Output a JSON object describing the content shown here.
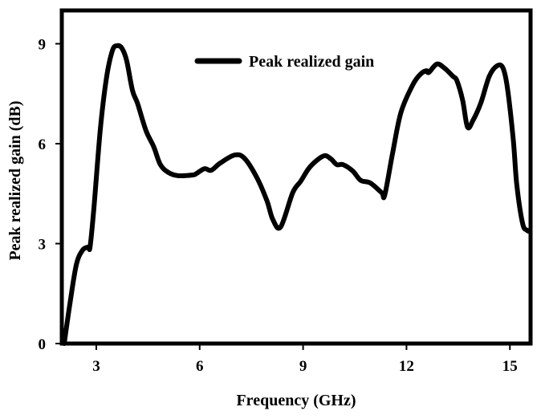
{
  "chart_data": {
    "type": "line",
    "title": "",
    "xlabel": "Frequency  (GHz)",
    "ylabel": "Peak realized gain  (dB)",
    "xlim": [
      2,
      15.6
    ],
    "ylim": [
      0,
      10
    ],
    "xticks": [
      3,
      6,
      9,
      12,
      15
    ],
    "yticks": [
      0,
      3,
      6,
      9
    ],
    "grid": false,
    "legend_position": "top-center",
    "series": [
      {
        "name": "Peak realized gain",
        "color": "#000000",
        "x": [
          2.07,
          2.23,
          2.42,
          2.6,
          2.77,
          2.82,
          2.93,
          3.12,
          3.3,
          3.47,
          3.6,
          3.74,
          3.88,
          4.05,
          4.2,
          4.44,
          4.67,
          4.86,
          5.1,
          5.37,
          5.8,
          5.9,
          6.14,
          6.33,
          6.6,
          7.02,
          7.3,
          7.65,
          7.95,
          8.12,
          8.35,
          8.7,
          8.93,
          9.16,
          9.4,
          9.63,
          9.81,
          9.98,
          10.16,
          10.44,
          10.67,
          10.95,
          11.28,
          11.37,
          11.6,
          11.84,
          12.19,
          12.42,
          12.58,
          12.65,
          12.88,
          13.1,
          13.35,
          13.46,
          13.63,
          13.77,
          13.93,
          14.16,
          14.4,
          14.63,
          14.8,
          14.93,
          15.1,
          15.2,
          15.37,
          15.5,
          15.56
        ],
        "y": [
          0,
          1.16,
          2.36,
          2.8,
          2.9,
          2.9,
          4.05,
          6.46,
          8.0,
          8.8,
          8.94,
          8.87,
          8.5,
          7.6,
          7.2,
          6.4,
          5.9,
          5.37,
          5.13,
          5.04,
          5.06,
          5.1,
          5.25,
          5.2,
          5.42,
          5.66,
          5.56,
          5.0,
          4.29,
          3.73,
          3.5,
          4.53,
          4.87,
          5.25,
          5.5,
          5.64,
          5.54,
          5.37,
          5.37,
          5.18,
          4.9,
          4.82,
          4.53,
          4.46,
          5.73,
          6.94,
          7.78,
          8.1,
          8.19,
          8.14,
          8.39,
          8.27,
          8.02,
          7.9,
          7.3,
          6.5,
          6.7,
          7.23,
          8.02,
          8.34,
          8.27,
          7.66,
          6.1,
          4.77,
          3.6,
          3.4,
          3.37
        ]
      }
    ]
  }
}
